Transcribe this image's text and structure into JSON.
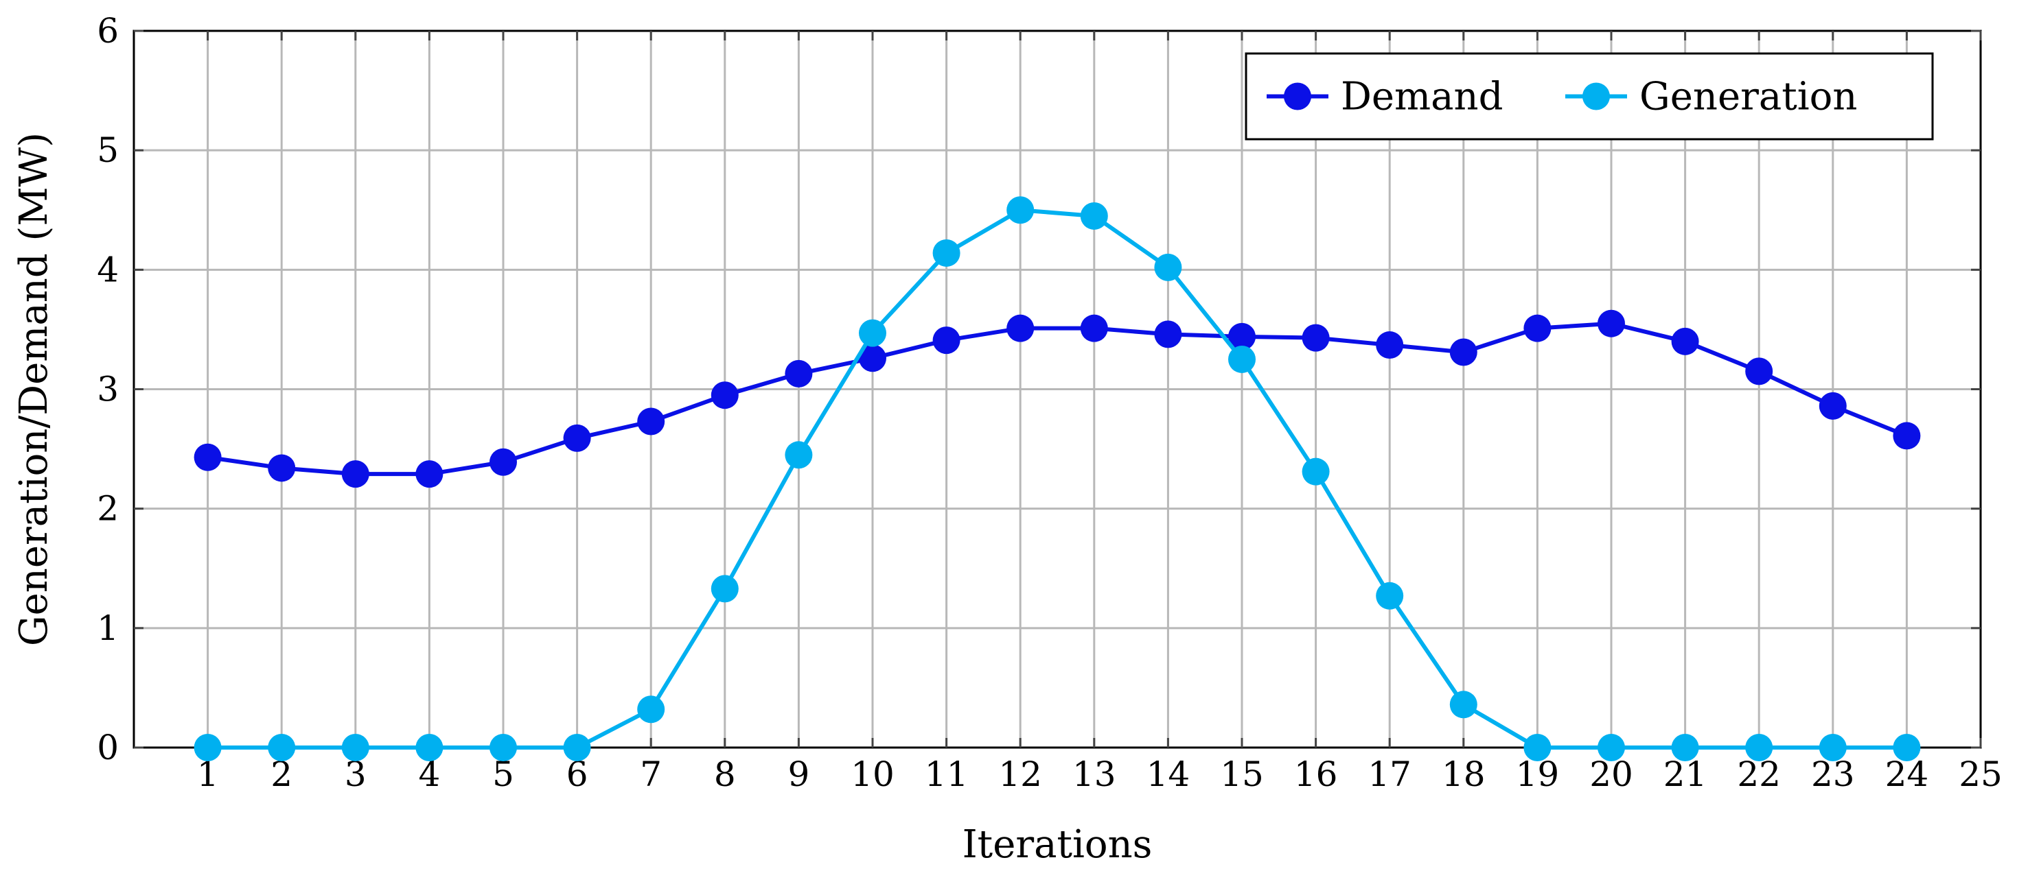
{
  "chart_data": {
    "type": "line",
    "title": "",
    "xlabel": "Iterations",
    "ylabel": "Generation/Demand (MW)",
    "xlim": [
      0,
      25
    ],
    "ylim": [
      0,
      6
    ],
    "x_ticks": [
      1,
      2,
      3,
      4,
      5,
      6,
      7,
      8,
      9,
      10,
      11,
      12,
      13,
      14,
      15,
      16,
      17,
      18,
      19,
      20,
      21,
      22,
      23,
      24,
      25
    ],
    "y_ticks": [
      0,
      1,
      2,
      3,
      4,
      5,
      6
    ],
    "grid": true,
    "legend_position": "top-right",
    "x": [
      1,
      2,
      3,
      4,
      5,
      6,
      7,
      8,
      9,
      10,
      11,
      12,
      13,
      14,
      15,
      16,
      17,
      18,
      19,
      20,
      21,
      22,
      23,
      24
    ],
    "series": [
      {
        "name": "Demand",
        "color": "#0a10e6",
        "values": [
          2.43,
          2.34,
          2.29,
          2.29,
          2.39,
          2.59,
          2.73,
          2.95,
          3.13,
          3.26,
          3.41,
          3.51,
          3.51,
          3.46,
          3.44,
          3.43,
          3.37,
          3.31,
          3.51,
          3.55,
          3.4,
          3.15,
          2.86,
          2.61
        ]
      },
      {
        "name": "Generation",
        "color": "#00b0f0",
        "values": [
          0,
          0,
          0,
          0,
          0,
          0,
          0.32,
          1.33,
          2.45,
          3.47,
          4.14,
          4.5,
          4.45,
          4.02,
          3.25,
          2.31,
          1.27,
          0.36,
          0,
          0,
          0,
          0,
          0,
          0
        ]
      }
    ]
  }
}
